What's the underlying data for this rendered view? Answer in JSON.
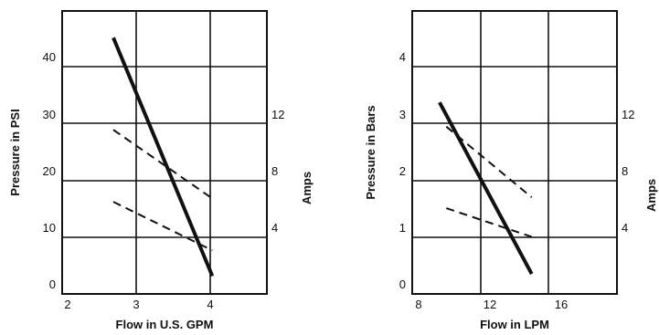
{
  "chart_data": [
    {
      "type": "line",
      "title": "",
      "xlabel": "Flow in U.S. GPM",
      "ylabel": "Pressure in PSI",
      "ylabel_right": "Amps",
      "xlim": [
        2,
        5
      ],
      "ylim": [
        -1.2,
        49.5
      ],
      "y2lim": [
        -0.4,
        16.5
      ],
      "grid": true,
      "x_ticks": [
        "2",
        "3",
        "4"
      ],
      "y_ticks": [
        "0",
        "10",
        "20",
        "30",
        "40"
      ],
      "y2_ticks": [
        "4",
        "8",
        "12"
      ],
      "series": [
        {
          "axis": "left",
          "style": "solid",
          "x": [
            2.75,
            4.2
          ],
          "y": [
            44.7,
            2
          ]
        },
        {
          "axis": "right",
          "style": "dashed",
          "x": [
            2.75,
            4.2
          ],
          "y": [
            9.4,
            5.3
          ]
        },
        {
          "axis": "right",
          "style": "dashed",
          "x": [
            2.75,
            4.2
          ],
          "y": [
            5.1,
            2.2
          ]
        }
      ]
    },
    {
      "type": "line",
      "title": "",
      "xlabel": "Flow in LPM",
      "ylabel": "Pressure in Bars",
      "ylabel_right": "Amps",
      "xlim": [
        8,
        20
      ],
      "ylim": [
        -0.15,
        4.8
      ],
      "y2lim": [
        -0.5,
        20.3
      ],
      "grid": true,
      "x_ticks": [
        "8",
        "12",
        "16"
      ],
      "y_ticks": [
        "0",
        "1",
        "2",
        "3",
        "4"
      ],
      "y2_ticks": [
        "4",
        "8",
        "12"
      ],
      "series": [
        {
          "axis": "left",
          "style": "solid",
          "x": [
            9.6,
            15
          ],
          "y": [
            3.2,
            0.2
          ]
        },
        {
          "axis": "right",
          "style": "dashed",
          "x": [
            10,
            15
          ],
          "y": [
            11.8,
            6.6
          ]
        },
        {
          "axis": "right",
          "style": "dashed",
          "x": [
            10,
            15
          ],
          "y": [
            5.8,
            3.7
          ]
        }
      ]
    }
  ]
}
